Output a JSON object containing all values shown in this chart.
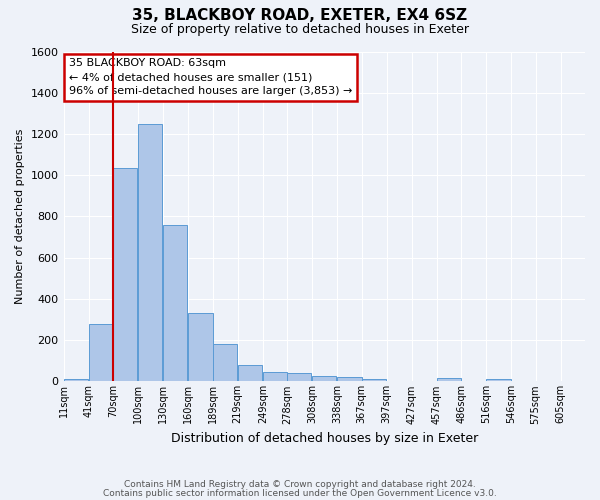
{
  "title": "35, BLACKBOY ROAD, EXETER, EX4 6SZ",
  "subtitle": "Size of property relative to detached houses in Exeter",
  "xlabel": "Distribution of detached houses by size in Exeter",
  "ylabel": "Number of detached properties",
  "footer_line1": "Contains HM Land Registry data © Crown copyright and database right 2024.",
  "footer_line2": "Contains public sector information licensed under the Open Government Licence v3.0.",
  "bin_labels": [
    "11sqm",
    "41sqm",
    "70sqm",
    "100sqm",
    "130sqm",
    "160sqm",
    "189sqm",
    "219sqm",
    "249sqm",
    "278sqm",
    "308sqm",
    "338sqm",
    "367sqm",
    "397sqm",
    "427sqm",
    "457sqm",
    "486sqm",
    "516sqm",
    "546sqm",
    "575sqm",
    "605sqm"
  ],
  "bar_values": [
    10,
    280,
    1035,
    1250,
    760,
    330,
    180,
    80,
    45,
    40,
    28,
    22,
    10,
    0,
    0,
    15,
    0,
    12,
    0,
    0,
    0
  ],
  "bar_color": "#aec6e8",
  "bar_edgecolor": "#5b9bd5",
  "ylim": [
    0,
    1600
  ],
  "yticks": [
    0,
    200,
    400,
    600,
    800,
    1000,
    1200,
    1400,
    1600
  ],
  "annotation_title": "35 BLACKBOY ROAD: 63sqm",
  "annotation_line1": "← 4% of detached houses are smaller (151)",
  "annotation_line2": "96% of semi-detached houses are larger (3,853) →",
  "annotation_box_color": "#ffffff",
  "annotation_border_color": "#cc0000",
  "vline_color": "#cc0000",
  "background_color": "#eef2f9",
  "grid_color": "#ffffff",
  "bin_width": 29
}
